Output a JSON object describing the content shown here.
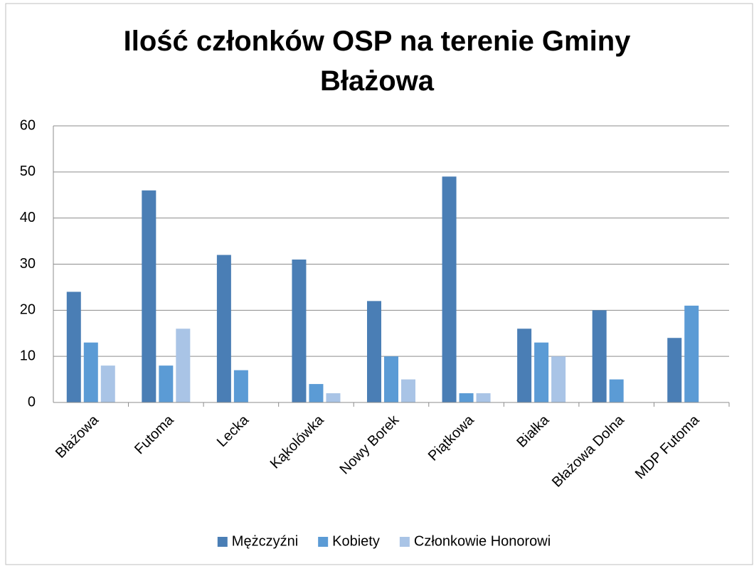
{
  "chart_data": {
    "type": "bar",
    "title": "Ilość członków OSP na terenie Gminy Błażowa",
    "categories": [
      "Błażowa",
      "Futoma",
      "Lecka",
      "Kąkolówka",
      "Nowy Borek",
      "Piątkowa",
      "Białka",
      "Błażowa Dolna",
      "MDP Futoma"
    ],
    "series": [
      {
        "name": "Mężczyźni",
        "color": "#4a7eb5",
        "values": [
          24,
          46,
          32,
          31,
          22,
          49,
          16,
          20,
          14
        ]
      },
      {
        "name": "Kobiety",
        "color": "#5b9bd5",
        "values": [
          13,
          8,
          7,
          4,
          10,
          2,
          13,
          5,
          21
        ]
      },
      {
        "name": "Członkowie Honorowi",
        "color": "#a9c4e6",
        "values": [
          8,
          16,
          0,
          2,
          5,
          2,
          10,
          0,
          0
        ]
      }
    ],
    "ylim": [
      0,
      60
    ],
    "yticks": [
      0,
      10,
      20,
      30,
      40,
      50,
      60
    ],
    "grid": true,
    "legend": "bottom"
  }
}
